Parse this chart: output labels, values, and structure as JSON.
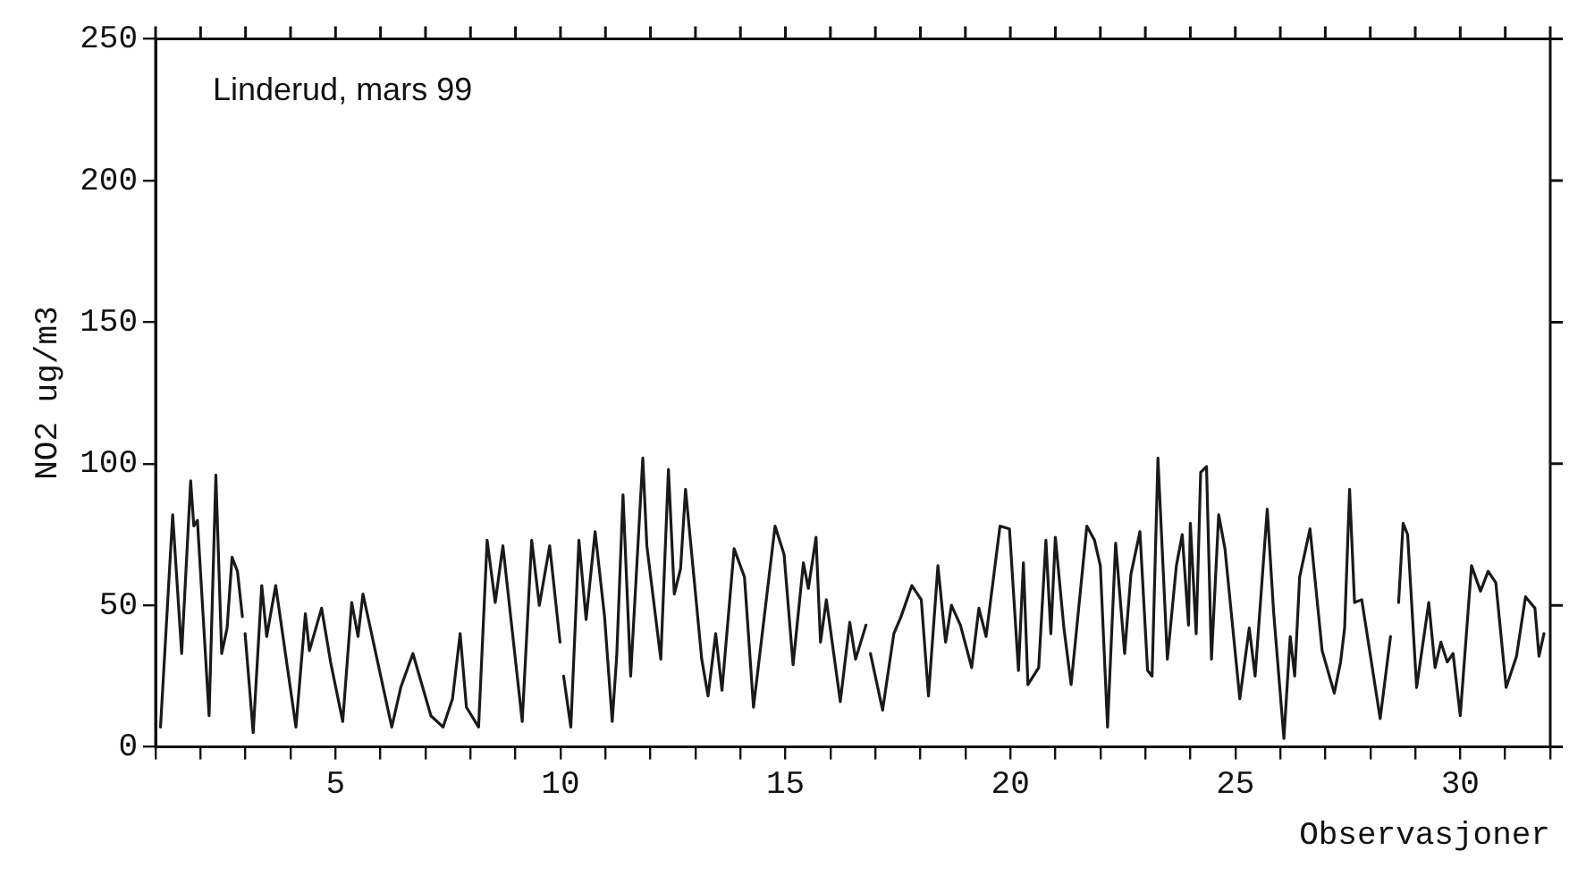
{
  "chart_data": {
    "type": "line",
    "title": "Linderud, mars 99",
    "xlabel": "Observasjoner",
    "ylabel": "NO2 ug/m3",
    "xlim": [
      1,
      32
    ],
    "ylim": [
      0,
      250
    ],
    "xticks": [
      {
        "value": 1,
        "label": null
      },
      {
        "value": 2,
        "label": null
      },
      {
        "value": 3,
        "label": null
      },
      {
        "value": 4,
        "label": null
      },
      5,
      {
        "value": 6,
        "label": null
      },
      {
        "value": 7,
        "label": null
      },
      {
        "value": 8,
        "label": null
      },
      {
        "value": 9,
        "label": null
      },
      10,
      {
        "value": 11,
        "label": null
      },
      {
        "value": 12,
        "label": null
      },
      {
        "value": 13,
        "label": null
      },
      {
        "value": 14,
        "label": null
      },
      15,
      {
        "value": 16,
        "label": null
      },
      {
        "value": 17,
        "label": null
      },
      {
        "value": 18,
        "label": null
      },
      {
        "value": 19,
        "label": null
      },
      20,
      {
        "value": 21,
        "label": null
      },
      {
        "value": 22,
        "label": null
      },
      {
        "value": 23,
        "label": null
      },
      {
        "value": 24,
        "label": null
      },
      25,
      {
        "value": 26,
        "label": null
      },
      {
        "value": 27,
        "label": null
      },
      {
        "value": 28,
        "label": null
      },
      {
        "value": 29,
        "label": null
      },
      30,
      {
        "value": 31,
        "label": null
      },
      {
        "value": 32,
        "label": null
      }
    ],
    "yticks": [
      0,
      50,
      100,
      150,
      200,
      250
    ],
    "grid": false,
    "legend": false,
    "marker": "none",
    "line_style": "solid",
    "series": [
      {
        "color": "#1a1a1a",
        "x": [
          1.11,
          1.38,
          1.58,
          1.78,
          1.85,
          1.93,
          2.19,
          2.34,
          2.47,
          2.59,
          2.7,
          2.82,
          2.93,
          2.96,
          2.99,
          3.17,
          3.36,
          3.47,
          3.67,
          4.12,
          4.33,
          4.42,
          4.69,
          4.89,
          5.16,
          5.36,
          5.5,
          5.61,
          6.25,
          6.45,
          6.72,
          7.12,
          7.39,
          7.6,
          7.77,
          7.91,
          8.18,
          8.37,
          8.55,
          8.72,
          9.15,
          9.36,
          9.53,
          9.76,
          9.99,
          10.03,
          10.07,
          10.23,
          10.41,
          10.57,
          10.77,
          10.98,
          11.15,
          11.25,
          11.39,
          11.56,
          11.83,
          11.92,
          12.23,
          12.4,
          12.53,
          12.67,
          12.78,
          13.14,
          13.28,
          13.45,
          13.59,
          13.86,
          14.09,
          14.29,
          14.77,
          14.97,
          15.17,
          15.4,
          15.51,
          15.68,
          15.78,
          15.91,
          16.22,
          16.43,
          16.56,
          16.79,
          16.84,
          16.89,
          17.16,
          17.41,
          17.57,
          17.81,
          18.02,
          18.18,
          18.39,
          18.56,
          18.69,
          18.89,
          19.14,
          19.3,
          19.46,
          19.77,
          19.98,
          20.18,
          20.29,
          20.39,
          20.63,
          20.79,
          20.9,
          21.0,
          21.19,
          21.35,
          21.7,
          21.87,
          22.0,
          22.16,
          22.34,
          22.54,
          22.68,
          22.88,
          23.05,
          23.15,
          23.28,
          23.49,
          23.69,
          23.82,
          23.96,
          24.0,
          24.13,
          24.23,
          24.36,
          24.47,
          24.63,
          24.77,
          24.9,
          25.1,
          25.31,
          25.44,
          25.71,
          25.85,
          26.08,
          26.22,
          26.32,
          26.43,
          26.66,
          26.93,
          27.2,
          27.34,
          27.43,
          27.54,
          27.65,
          27.81,
          28.22,
          28.45,
          28.54,
          28.63,
          28.73,
          28.83,
          29.03,
          29.3,
          29.44,
          29.57,
          29.71,
          29.84,
          30.0,
          30.25,
          30.45,
          30.62,
          30.79,
          31.02,
          31.25,
          31.45,
          31.66,
          31.75,
          31.86
        ],
        "values": [
          7,
          82,
          33,
          94,
          78,
          80,
          11,
          96,
          33,
          42,
          67,
          62,
          46,
          null,
          40,
          5,
          57,
          39,
          57,
          7,
          47,
          34,
          49,
          30,
          9,
          51,
          39,
          54,
          7,
          21,
          33,
          11,
          7,
          17,
          40,
          14,
          7,
          73,
          51,
          71,
          9,
          73,
          50,
          71,
          37,
          null,
          25,
          7,
          73,
          45,
          76,
          46,
          9,
          32,
          89,
          25,
          102,
          71,
          31,
          98,
          54,
          63,
          91,
          31,
          18,
          40,
          20,
          70,
          60,
          14,
          78,
          68,
          29,
          65,
          56,
          74,
          37,
          52,
          16,
          44,
          31,
          43,
          null,
          33,
          13,
          40,
          46,
          57,
          52,
          18,
          64,
          37,
          50,
          43,
          28,
          49,
          39,
          78,
          77,
          27,
          65,
          22,
          28,
          73,
          40,
          74,
          42,
          22,
          78,
          73,
          64,
          7,
          72,
          33,
          61,
          76,
          27,
          25,
          102,
          31,
          64,
          75,
          43,
          79,
          40,
          97,
          99,
          31,
          82,
          70,
          49,
          17,
          42,
          25,
          84,
          48,
          3,
          39,
          25,
          60,
          77,
          34,
          19,
          30,
          42,
          91,
          51,
          52,
          10,
          39,
          null,
          51,
          79,
          75,
          21,
          51,
          28,
          37,
          30,
          33,
          11,
          64,
          55,
          62,
          58,
          21,
          32,
          53,
          49,
          32,
          40
        ]
      }
    ]
  }
}
